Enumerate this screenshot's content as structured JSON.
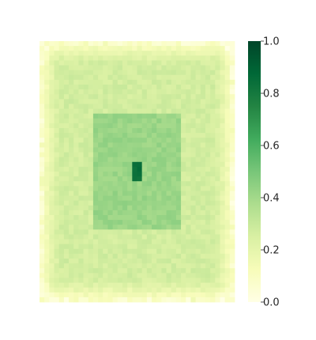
{
  "chart_data": {
    "type": "heatmap",
    "title": "",
    "xlabel": "",
    "ylabel": "",
    "axes_visible": false,
    "grid": false,
    "colormap": "YlGn",
    "colormap_stops": [
      "#ffffe5",
      "#f7fcb9",
      "#d9f0a3",
      "#addd8e",
      "#78c679",
      "#41ab5d",
      "#238443",
      "#006837",
      "#004529"
    ],
    "value_range": [
      0,
      1
    ],
    "colorbar": {
      "placement": "right",
      "ticks": [
        0.0,
        0.2,
        0.4,
        0.6,
        0.8,
        1.0
      ],
      "tick_labels": [
        "0.0",
        "0.2",
        "0.4",
        "0.6",
        "0.8",
        "1.0"
      ]
    },
    "grid_shape": {
      "rows": 54,
      "cols": 40
    },
    "regions": [
      {
        "name": "border",
        "value": 0.05
      },
      {
        "name": "outer",
        "value": 0.27
      },
      {
        "name": "inner_rectangle",
        "value": 0.42
      },
      {
        "name": "center_spot",
        "value": 0.85
      }
    ]
  }
}
